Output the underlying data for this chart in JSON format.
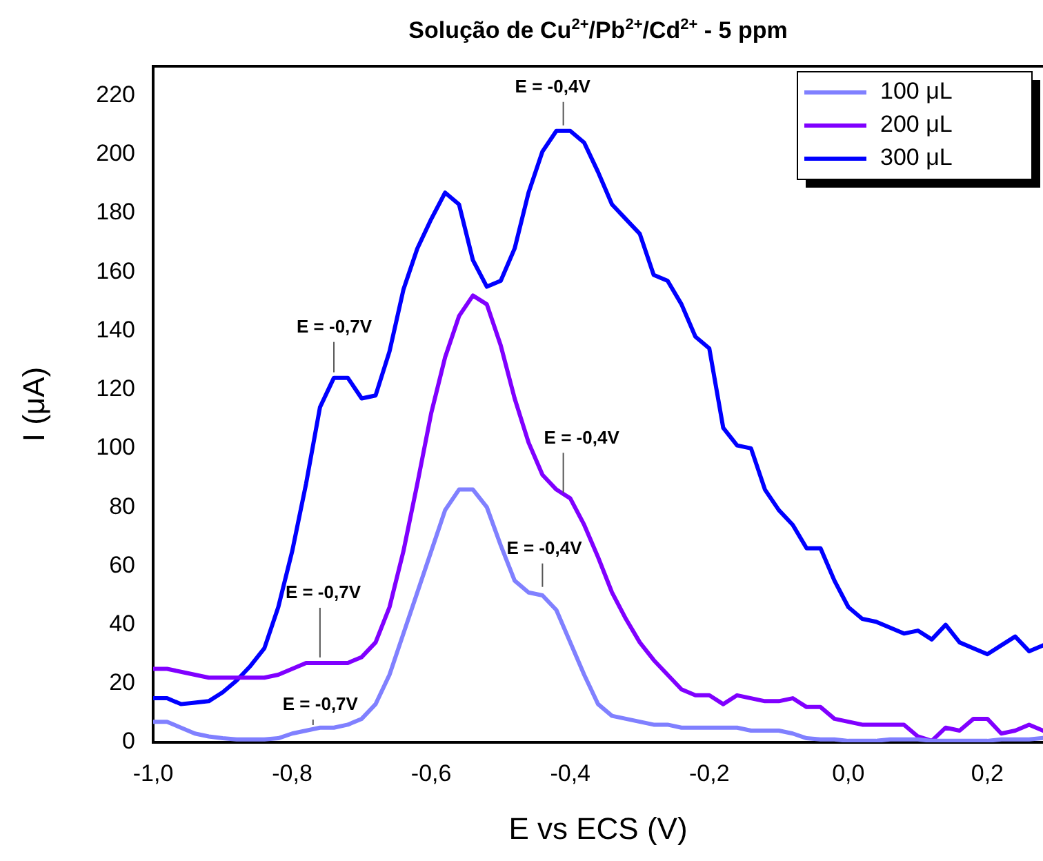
{
  "chart_data": {
    "type": "line",
    "title": "Solução de Cu$^{2+}$/Pb$^{2+}$/Cd$^{2+}$ - 5 ppm",
    "xlabel": "E vs ECS (V)",
    "ylabel": "I (μA)",
    "x": [
      -1.0,
      -0.98,
      -0.96,
      -0.94,
      -0.92,
      -0.9,
      -0.88,
      -0.86,
      -0.84,
      -0.82,
      -0.8,
      -0.78,
      -0.76,
      -0.74,
      -0.72,
      -0.7,
      -0.68,
      -0.66,
      -0.64,
      -0.62,
      -0.6,
      -0.58,
      -0.56,
      -0.54,
      -0.52,
      -0.5,
      -0.48,
      -0.46,
      -0.44,
      -0.42,
      -0.4,
      -0.38,
      -0.36,
      -0.34,
      -0.32,
      -0.3,
      -0.28,
      -0.26,
      -0.24,
      -0.22,
      -0.2,
      -0.18,
      -0.16,
      -0.14,
      -0.12,
      -0.1,
      -0.08,
      -0.06,
      -0.04,
      -0.02,
      0.0,
      0.02,
      0.04,
      0.06,
      0.08,
      0.1,
      0.12,
      0.14,
      0.16,
      0.18,
      0.2,
      0.22,
      0.24,
      0.26,
      0.28
    ],
    "series": [
      {
        "name": "100 μL",
        "color": "#8080ff",
        "values": [
          7,
          7,
          5,
          3,
          2,
          1.4,
          1,
          1,
          1,
          1.4,
          3,
          4,
          5,
          5,
          6,
          8,
          13,
          23,
          37,
          51,
          65,
          79,
          86,
          86,
          80,
          67,
          55,
          51,
          50,
          45,
          34,
          23,
          13,
          9,
          8,
          7,
          6,
          6,
          5,
          5,
          5,
          5,
          5,
          4,
          4,
          4,
          3,
          1.4,
          1,
          1,
          0.5,
          0.5,
          0.5,
          1,
          1,
          1,
          0.5,
          0.5,
          0.5,
          0.5,
          0.5,
          1,
          1,
          1,
          1.5
        ]
      },
      {
        "name": "200 μL",
        "color": "#8000ff",
        "values": [
          25,
          25,
          24,
          23,
          22,
          22,
          22,
          22,
          22,
          23,
          25,
          27,
          27,
          27,
          27,
          29,
          34,
          46,
          65,
          88,
          112,
          131,
          145,
          152,
          149,
          135,
          117,
          102,
          91,
          86,
          83,
          74,
          63,
          51,
          42,
          34,
          28,
          23,
          18,
          16,
          16,
          13,
          16,
          15,
          14,
          14,
          15,
          12,
          12,
          8,
          7,
          6,
          6,
          6,
          6,
          2,
          0.5,
          5,
          4,
          8,
          8,
          3,
          4,
          6,
          4
        ]
      },
      {
        "name": "300 μL",
        "color": "#0000ff",
        "values": [
          15,
          15,
          13,
          13.5,
          14,
          17,
          21,
          26,
          32,
          46,
          65,
          88,
          114,
          124,
          124,
          117,
          118,
          133,
          154,
          168,
          178,
          187,
          183,
          164,
          155,
          157,
          168,
          187,
          201,
          208,
          208,
          204,
          194,
          183,
          178,
          173,
          159,
          157,
          149,
          138,
          134,
          107,
          101,
          100,
          86,
          79,
          74,
          66,
          66,
          55,
          46,
          42,
          41,
          39,
          37,
          38,
          35,
          40,
          34,
          32,
          30,
          33,
          36,
          31,
          33
        ]
      }
    ],
    "xlim": [
      -1.0,
      0.28
    ],
    "xticks": [
      {
        "value": -1.0,
        "label": "-1,0"
      },
      {
        "value": -0.8,
        "label": "-0,8"
      },
      {
        "value": -0.6,
        "label": "-0,6"
      },
      {
        "value": -0.4,
        "label": "-0,4"
      },
      {
        "value": -0.2,
        "label": "-0,2"
      },
      {
        "value": 0.0,
        "label": "0,0"
      },
      {
        "value": 0.2,
        "label": "0,2"
      }
    ],
    "ylim": [
      0,
      230
    ],
    "yticks": [
      0,
      20,
      40,
      60,
      80,
      100,
      120,
      140,
      160,
      180,
      200,
      220
    ],
    "annotations": [
      {
        "text": "E = -0,7V",
        "x": -0.74,
        "y": 124
      },
      {
        "text": "E = -0,4V",
        "x": -0.41,
        "y": 208
      },
      {
        "text": "E = -0,7V",
        "x": -0.76,
        "y": 27
      },
      {
        "text": "E = -0,4V",
        "x": -0.41,
        "y": 83
      },
      {
        "text": "E = -0,7V",
        "x": -0.77,
        "y": 4
      },
      {
        "text": "E = -0,4V",
        "x": -0.44,
        "y": 51
      }
    ],
    "legend": "top right",
    "grid": false,
    "marker": "none",
    "line_style": "solid"
  }
}
